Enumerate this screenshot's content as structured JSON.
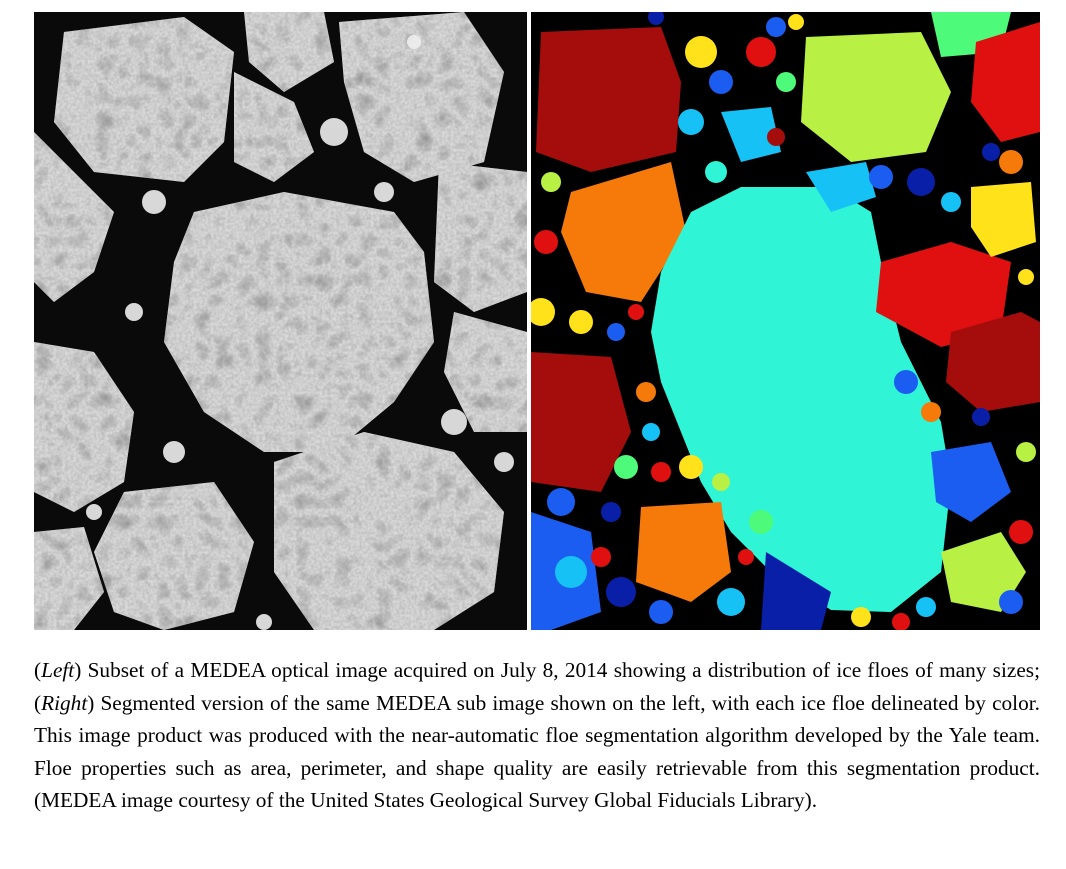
{
  "figure": {
    "left_panel": "grayscale MEDEA optical image of sea ice floes",
    "right_panel": "segmentation map, each floe a distinct color",
    "segment_colors": {
      "dark_red": "#a50d0d",
      "red": "#e01010",
      "orange": "#f57a0a",
      "yellow": "#ffe21a",
      "lime": "#b8f043",
      "green": "#4dfa7a",
      "cyan": "#2ff5d6",
      "sky": "#16c2f5",
      "blue": "#1a5df0",
      "navy": "#0a1fa8"
    }
  },
  "caption": {
    "left_tag": "Left",
    "left_text": " Subset of a MEDEA optical image acquired on July 8, 2014 showing a distribution of ice floes of many sizes; ",
    "right_tag": "Right",
    "right_text": " Segmented version of the same MEDEA sub image shown on the left, with each ice floe delineated by color. This image product was produced with the near-automatic floe segmentation algorithm developed by the Yale team. Floe properties such as area, perimeter, and shape quality are easily retrievable from this segmentation product. (MEDEA image courtesy of the United States Geological Survey Global Fiducials Library)."
  }
}
